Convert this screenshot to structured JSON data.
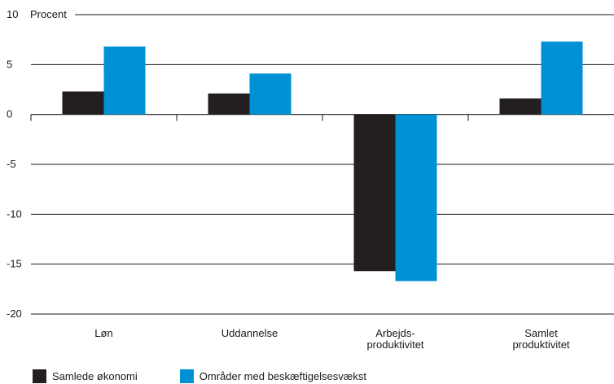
{
  "chart_data": {
    "type": "bar",
    "title": "",
    "xlabel": "",
    "ylabel": "Procent",
    "categories": [
      [
        "Løn"
      ],
      [
        "Uddannelse"
      ],
      [
        "Arbejds-",
        "produktivitet"
      ],
      [
        "Samlet",
        "produktivitet"
      ]
    ],
    "series": [
      {
        "name": "Samlede økonomi",
        "color": "#231f20",
        "values": [
          2.3,
          2.1,
          -15.7,
          1.6
        ]
      },
      {
        "name": "Områder med beskæftigelsesvækst",
        "color": "#0091d4",
        "values": [
          6.8,
          4.1,
          -16.7,
          7.3
        ]
      }
    ],
    "ylim": [
      -20,
      10
    ],
    "yticks": [
      10,
      5,
      0,
      -5,
      -10,
      -15,
      -20
    ],
    "grid": true,
    "legend": "bottom-left"
  }
}
